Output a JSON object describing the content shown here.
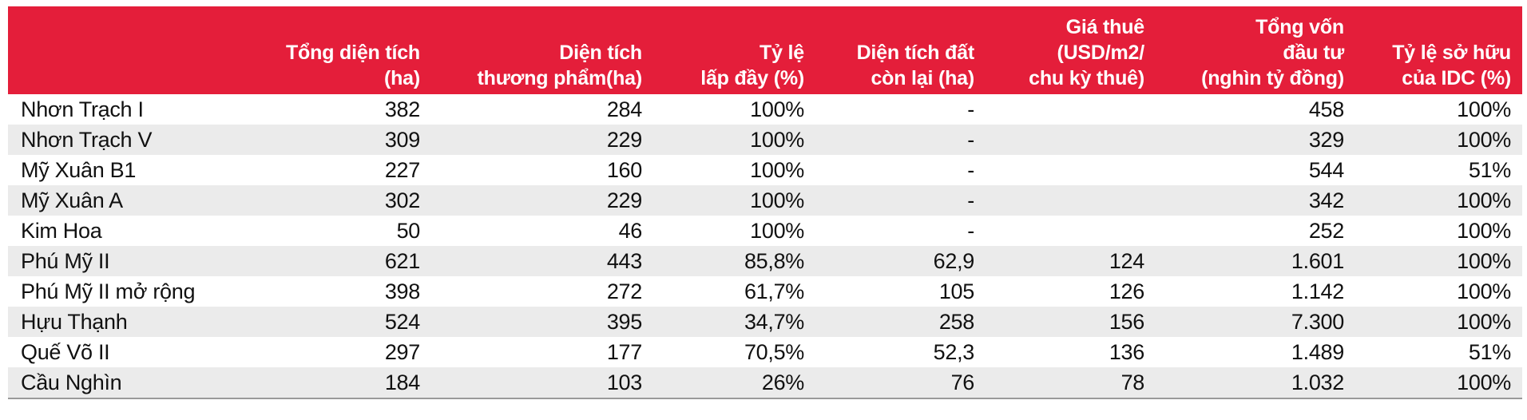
{
  "table": {
    "headers": [
      "",
      "Tổng diện tích\n(ha)",
      "Diện tích\nthương phẩm(ha)",
      "Tỷ lệ\nlấp đầy (%)",
      "Diện tích đất\ncòn lại (ha)",
      "Giá thuê\n(USD/m2/\nchu kỳ thuê)",
      "Tổng vốn\nđầu tư\n(nghìn tỷ đồng)",
      "Tỷ lệ sở hữu\ncủa IDC (%)"
    ],
    "rows": [
      [
        "Nhơn Trạch I",
        "382",
        "284",
        "100%",
        "-",
        "",
        "458",
        "100%"
      ],
      [
        "Nhơn Trạch V",
        "309",
        "229",
        "100%",
        "-",
        "",
        "329",
        "100%"
      ],
      [
        "Mỹ Xuân B1",
        "227",
        "160",
        "100%",
        "-",
        "",
        "544",
        "51%"
      ],
      [
        "Mỹ Xuân A",
        "302",
        "229",
        "100%",
        "-",
        "",
        "342",
        "100%"
      ],
      [
        "Kim Hoa",
        "50",
        "46",
        "100%",
        "-",
        "",
        "252",
        "100%"
      ],
      [
        "Phú Mỹ II",
        "621",
        "443",
        "85,8%",
        "62,9",
        "124",
        "1.601",
        "100%"
      ],
      [
        "Phú Mỹ II mở rộng",
        "398",
        "272",
        "61,7%",
        "105",
        "126",
        "1.142",
        "100%"
      ],
      [
        "Hựu Thạnh",
        "524",
        "395",
        "34,7%",
        "258",
        "156",
        "7.300",
        "100%"
      ],
      [
        "Quế Võ II",
        "297",
        "177",
        "70,5%",
        "52,3",
        "136",
        "1.489",
        "51%"
      ],
      [
        "Cầu Nghìn",
        "184",
        "103",
        "26%",
        "76",
        "78",
        "1.032",
        "100%"
      ]
    ]
  },
  "colors": {
    "header_bg": "#e41e3a",
    "header_text": "#ffffff",
    "row_alt_bg": "#ebebeb"
  }
}
